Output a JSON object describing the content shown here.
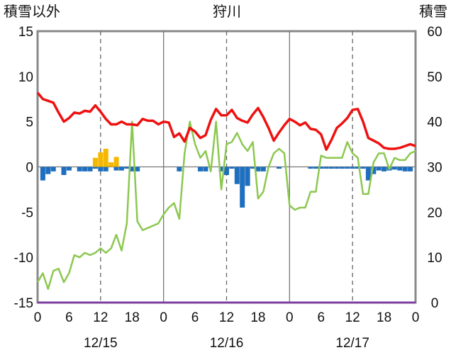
{
  "chart_data": {
    "type": "line",
    "title": "狩川",
    "left_axis_label": "積雪以外",
    "right_axis_label": "積雪",
    "ylim_left": [
      -15,
      15
    ],
    "yticks_left": [
      15,
      10,
      5,
      0,
      -5,
      -10,
      -15
    ],
    "ylim_right": [
      0,
      60
    ],
    "yticks_right": [
      60,
      50,
      40,
      30,
      20,
      10,
      0
    ],
    "xlim_hours": [
      0,
      72
    ],
    "xtick_labels": [
      "0",
      "6",
      "12",
      "18",
      "0",
      "6",
      "12",
      "18",
      "0",
      "6",
      "12",
      "18",
      "0"
    ],
    "date_labels": [
      "12/15",
      "12/16",
      "12/17"
    ],
    "grid": "dashed vertical at 12 and 18? (dashed at hours 12, 36, 60); solid at 24, 48",
    "colors": {
      "temperature": "#ee1111",
      "snow_depth": "#8cc850",
      "precip": "#f5b800",
      "precip_neg": "#1e6fbf",
      "baseline": "#7b3fa0"
    },
    "series": [
      {
        "name": "",
        "axis": "left",
        "color": "#ee1111",
        "x": [
          0,
          1,
          2,
          3,
          4,
          5,
          6,
          7,
          8,
          9,
          10,
          11,
          12,
          13,
          14,
          15,
          16,
          17,
          18,
          19,
          20,
          21,
          22,
          23,
          24,
          25,
          26,
          27,
          28,
          29,
          30,
          31,
          32,
          33,
          34,
          35,
          36,
          37,
          38,
          39,
          40,
          41,
          42,
          43,
          44,
          45,
          46,
          47,
          48,
          49,
          50,
          51,
          52,
          53,
          54,
          55,
          56,
          57,
          58,
          59,
          60,
          61,
          62,
          63,
          64,
          65,
          66,
          67,
          68,
          69,
          70,
          71,
          72
        ],
        "y": [
          8.2,
          7.5,
          7.3,
          7.1,
          6.0,
          5.0,
          5.4,
          6.0,
          5.9,
          6.2,
          6.1,
          6.8,
          6.1,
          5.3,
          4.7,
          4.7,
          5.0,
          4.7,
          4.7,
          4.6,
          5.3,
          5.1,
          5.1,
          4.7,
          5.0,
          4.9,
          3.3,
          3.7,
          2.8,
          4.3,
          3.9,
          3.2,
          3.5,
          5.2,
          6.4,
          5.7,
          5.7,
          6.3,
          5.4,
          5.1,
          4.9,
          5.8,
          6.5,
          5.5,
          4.3,
          2.9,
          3.8,
          4.6,
          5.3,
          5.0,
          4.6,
          4.9,
          4.2,
          4.1,
          3.6,
          1.9,
          3.0,
          4.3,
          4.8,
          5.4,
          6.3,
          6.4,
          5.0,
          3.2,
          2.9,
          2.6,
          2.1,
          2.0,
          2.0,
          2.1,
          2.3,
          2.5,
          2.3
        ]
      },
      {
        "name": "",
        "axis": "right",
        "color": "#8cc850",
        "x": [
          0,
          1,
          2,
          3,
          4,
          5,
          6,
          7,
          8,
          9,
          10,
          11,
          12,
          13,
          14,
          15,
          16,
          17,
          18,
          19,
          20,
          21,
          22,
          23,
          24,
          25,
          26,
          27,
          28,
          29,
          30,
          31,
          32,
          33,
          34,
          35,
          36,
          37,
          38,
          39,
          40,
          41,
          42,
          43,
          44,
          45,
          46,
          47,
          48,
          49,
          50,
          51,
          52,
          53,
          54,
          55,
          56,
          57,
          58,
          59,
          60,
          61,
          62,
          63,
          64,
          65,
          66,
          67,
          68,
          69,
          70,
          71,
          72
        ],
        "y": [
          4.5,
          6.5,
          3.0,
          7.0,
          7.5,
          4.5,
          6.5,
          10.5,
          10.0,
          11.0,
          10.5,
          11.0,
          12.0,
          11.0,
          12.0,
          15.0,
          11.5,
          17.5,
          40.0,
          18.0,
          16.0,
          16.5,
          17.0,
          17.5,
          19.5,
          21.0,
          22.0,
          18.5,
          33.0,
          40.0,
          35.0,
          32.0,
          33.5,
          29.0,
          40.0,
          25.0,
          35.0,
          35.5,
          37.5,
          35.0,
          33.5,
          35.5,
          23.0,
          24.5,
          30.0,
          33.0,
          34.0,
          33.0,
          21.5,
          20.5,
          21.0,
          21.0,
          24.5,
          24.5,
          32.5,
          32.0,
          32.0,
          32.0,
          32.0,
          35.5,
          33.0,
          32.0,
          24.0,
          24.0,
          31.0,
          33.0,
          33.0,
          29.5,
          32.0,
          31.5,
          31.5,
          33.0,
          33.5
        ]
      },
      {
        "name": "",
        "axis": "left",
        "type": "bar",
        "x": [
          1,
          2,
          3,
          5,
          6,
          8,
          9,
          10,
          11,
          12,
          13,
          14,
          15,
          16,
          17,
          18,
          19,
          27,
          31,
          32,
          35,
          36,
          37,
          38,
          39,
          40,
          41,
          42,
          43,
          46,
          52,
          53,
          54,
          55,
          56,
          57,
          58,
          59,
          60,
          61,
          62,
          63,
          64,
          65,
          66,
          67,
          68,
          69,
          70,
          71
        ],
        "y": [
          -1.5,
          -0.8,
          -0.5,
          -0.9,
          -0.4,
          -0.5,
          -0.5,
          -0.5,
          -0.2,
          -0.5,
          -0.5,
          0,
          -0.4,
          -0.4,
          -0.2,
          -0.5,
          -0.5,
          -0.5,
          -0.5,
          -0.5,
          -0.5,
          -0.9,
          -0.2,
          -1.9,
          -4.5,
          -2.1,
          -0.2,
          -0.5,
          -0.5,
          -0.2,
          -0.2,
          -0.2,
          -0.2,
          -0.2,
          -0.2,
          -0.2,
          -0.2,
          -0.2,
          -0.2,
          -0.2,
          -0.2,
          -1.5,
          -0.8,
          -0.4,
          -0.5,
          -0.4,
          -0.3,
          -0.4,
          -0.5,
          -0.5
        ]
      },
      {
        "name": "",
        "axis": "left",
        "type": "bar",
        "x": [
          11,
          12,
          13,
          14,
          15
        ],
        "y": [
          1.0,
          1.6,
          2.0,
          0.5,
          1.1
        ]
      }
    ]
  }
}
